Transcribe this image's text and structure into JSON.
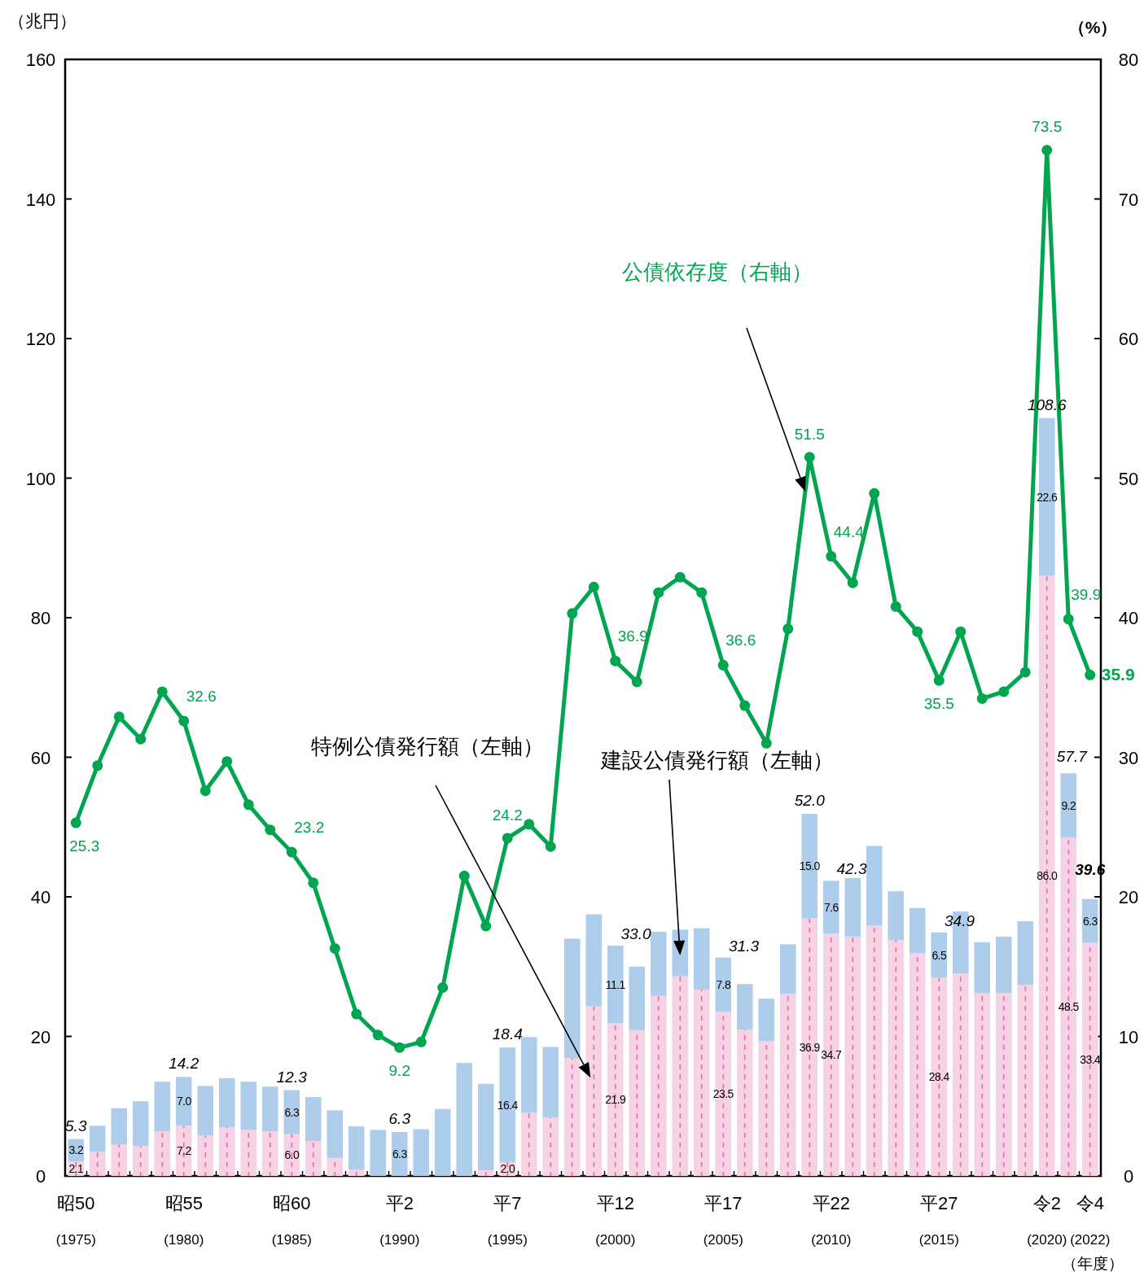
{
  "chart_data": {
    "type": "bar",
    "stacked": true,
    "legend": false,
    "ylabel": "（兆円）",
    "y2label": "（%）",
    "xlabel": "（年度）",
    "categories": [
      "昭50\n(1975)",
      null,
      null,
      null,
      null,
      "昭55\n(1980)",
      null,
      null,
      null,
      null,
      "昭60\n(1985)",
      null,
      null,
      null,
      null,
      "平2\n(1990)",
      null,
      null,
      null,
      null,
      "平7\n(1995)",
      null,
      null,
      null,
      null,
      "平12\n(2000)",
      null,
      null,
      null,
      null,
      "平17\n(2005)",
      null,
      null,
      null,
      null,
      "平22\n(2010)",
      null,
      null,
      null,
      null,
      "平27\n(2015)",
      null,
      null,
      null,
      null,
      "令2\n(2020)",
      null,
      "令4\n(2022)"
    ],
    "ylim": [
      0,
      160
    ],
    "yticks": [
      0,
      20,
      40,
      60,
      80,
      100,
      120,
      140,
      160
    ],
    "y2lim": [
      0,
      80
    ],
    "y2ticks": [
      0,
      10,
      20,
      30,
      40,
      50,
      60,
      70,
      80
    ],
    "series": [
      {
        "name": "特例公債発行額（左軸）",
        "color": "#f6d3e4",
        "values": [
          2.1,
          3.5,
          4.5,
          4.3,
          6.4,
          7.2,
          5.8,
          7.0,
          6.6,
          6.4,
          6.0,
          5.0,
          2.6,
          0.9,
          0,
          0,
          0,
          0,
          0,
          0.8,
          2.0,
          9.1,
          8.4,
          16.9,
          24.3,
          21.9,
          20.9,
          25.8,
          28.6,
          26.7,
          23.5,
          21.0,
          19.3,
          26.1,
          36.9,
          34.7,
          34.3,
          35.9,
          33.8,
          31.9,
          28.4,
          29.0,
          26.2,
          26.2,
          27.4,
          86.0,
          48.5,
          33.4
        ],
        "value_labels": [
          "2.1",
          null,
          null,
          null,
          null,
          "7.2",
          null,
          null,
          null,
          null,
          "6.0",
          null,
          null,
          null,
          null,
          null,
          null,
          null,
          null,
          null,
          "2.0",
          null,
          null,
          null,
          null,
          "21.9",
          null,
          null,
          null,
          null,
          "23.5",
          null,
          null,
          null,
          "36.9",
          "34.7",
          null,
          null,
          null,
          null,
          "28.4",
          null,
          null,
          null,
          null,
          "86.0",
          "48.5",
          "33.4"
        ]
      },
      {
        "name": "建設公債発行額（左軸）",
        "color": "#aecdea",
        "values": [
          3.2,
          3.7,
          5.2,
          6.4,
          7.1,
          7.0,
          7.1,
          7.0,
          6.9,
          6.4,
          6.3,
          6.3,
          6.8,
          6.2,
          6.6,
          6.3,
          6.7,
          9.6,
          16.2,
          12.4,
          16.4,
          10.8,
          10.1,
          17.1,
          13.2,
          11.1,
          9.1,
          9.2,
          6.7,
          8.8,
          7.8,
          6.5,
          6.1,
          7.1,
          15.0,
          7.6,
          8.4,
          11.4,
          7.0,
          6.5,
          6.5,
          8.9,
          7.3,
          8.1,
          9.1,
          22.6,
          9.2,
          6.3
        ],
        "value_labels": [
          "3.2",
          null,
          null,
          null,
          null,
          "7.0",
          null,
          null,
          null,
          null,
          "6.3",
          null,
          null,
          null,
          null,
          "6.3",
          null,
          null,
          null,
          null,
          "16.4",
          null,
          null,
          null,
          null,
          "11.1",
          null,
          null,
          null,
          null,
          "7.8",
          null,
          null,
          null,
          "15.0",
          "7.6",
          null,
          null,
          null,
          null,
          "6.5",
          null,
          null,
          null,
          null,
          "22.6",
          "9.2",
          "6.3"
        ]
      },
      {
        "name": "公債依存度（右軸）",
        "type": "line",
        "axis": "y2",
        "marker": "circle",
        "color": "#00a550",
        "values": [
          25.3,
          29.4,
          32.9,
          31.3,
          34.7,
          32.6,
          27.6,
          29.7,
          26.6,
          24.8,
          23.2,
          21.0,
          16.3,
          11.6,
          10.1,
          9.2,
          9.6,
          13.5,
          21.5,
          17.9,
          24.2,
          25.2,
          23.6,
          40.3,
          42.2,
          36.9,
          35.4,
          41.8,
          42.9,
          41.8,
          36.6,
          33.7,
          31.0,
          39.2,
          51.5,
          44.4,
          42.5,
          48.9,
          40.8,
          39.0,
          35.5,
          39.0,
          34.2,
          34.7,
          36.1,
          73.5,
          39.9,
          35.9
        ],
        "value_labels": [
          "25.3",
          null,
          null,
          null,
          null,
          "32.6",
          null,
          null,
          null,
          null,
          "23.2",
          null,
          null,
          null,
          null,
          "9.2",
          null,
          null,
          null,
          null,
          "24.2",
          null,
          null,
          null,
          null,
          "36.9",
          null,
          null,
          null,
          null,
          "36.6",
          null,
          null,
          null,
          "51.5",
          "44.4",
          null,
          null,
          null,
          null,
          "35.5",
          null,
          null,
          null,
          null,
          "73.5",
          "39.9",
          "35.9"
        ]
      }
    ],
    "totals": [
      "5.3",
      null,
      null,
      null,
      null,
      "14.2",
      null,
      null,
      null,
      null,
      "12.3",
      null,
      null,
      null,
      null,
      "6.3",
      null,
      null,
      null,
      null,
      "18.4",
      null,
      null,
      null,
      null,
      "33.0",
      null,
      null,
      null,
      null,
      "31.3",
      null,
      null,
      null,
      "52.0",
      "42.3",
      null,
      null,
      null,
      null,
      "34.9",
      null,
      null,
      null,
      null,
      "108.6",
      "57.7",
      "39.6"
    ]
  }
}
